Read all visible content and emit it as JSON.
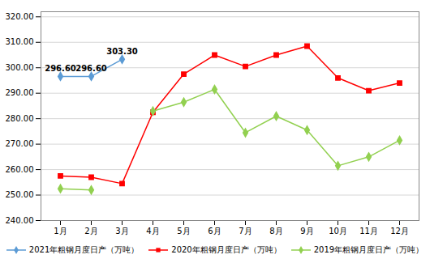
{
  "chart_data": {
    "type": "line",
    "categories": [
      "1月",
      "2月",
      "3月",
      "4月",
      "5月",
      "6月",
      "7月",
      "8月",
      "9月",
      "10月",
      "11月",
      "12月"
    ],
    "series": [
      {
        "name": "2021年粗钢月度日产（万吨）",
        "color": "#5B9BD5",
        "marker": "diamond",
        "values": [
          296.6,
          296.6,
          303.3,
          null,
          null,
          null,
          null,
          null,
          null,
          null,
          null,
          null
        ]
      },
      {
        "name": "2020年粗钢月度日产（万吨）",
        "color": "#FF0000",
        "marker": "square",
        "values": [
          257.5,
          257.0,
          254.5,
          282.5,
          297.5,
          305.0,
          300.5,
          305.0,
          308.5,
          296.0,
          291.0,
          294.0
        ]
      },
      {
        "name": "2019年粗钢月度日产（万吨）",
        "color": "#92D050",
        "marker": "diamond",
        "values": [
          252.5,
          252.0,
          null,
          283.0,
          286.5,
          291.5,
          274.5,
          281.0,
          275.5,
          261.5,
          265.0,
          271.5
        ]
      }
    ],
    "ylim": [
      240,
      322
    ],
    "yticks": [
      {
        "value": 240,
        "label": "240.00"
      },
      {
        "value": 250,
        "label": "250.00"
      },
      {
        "value": 260,
        "label": "260.00"
      },
      {
        "value": 270,
        "label": "270.00"
      },
      {
        "value": 280,
        "label": "280.00"
      },
      {
        "value": 290,
        "label": "290.00"
      },
      {
        "value": 300,
        "label": "300.00"
      },
      {
        "value": 310,
        "label": "310.00"
      },
      {
        "value": 320,
        "label": "320.00"
      }
    ],
    "annotations": [
      {
        "text": "296.60",
        "x": "1月",
        "y": 296.6
      },
      {
        "text": "296.60",
        "x": "2月",
        "y": 296.6
      },
      {
        "text": "303.30",
        "x": "3月",
        "y": 303.3
      }
    ],
    "grid": true,
    "legend": "bottom"
  }
}
